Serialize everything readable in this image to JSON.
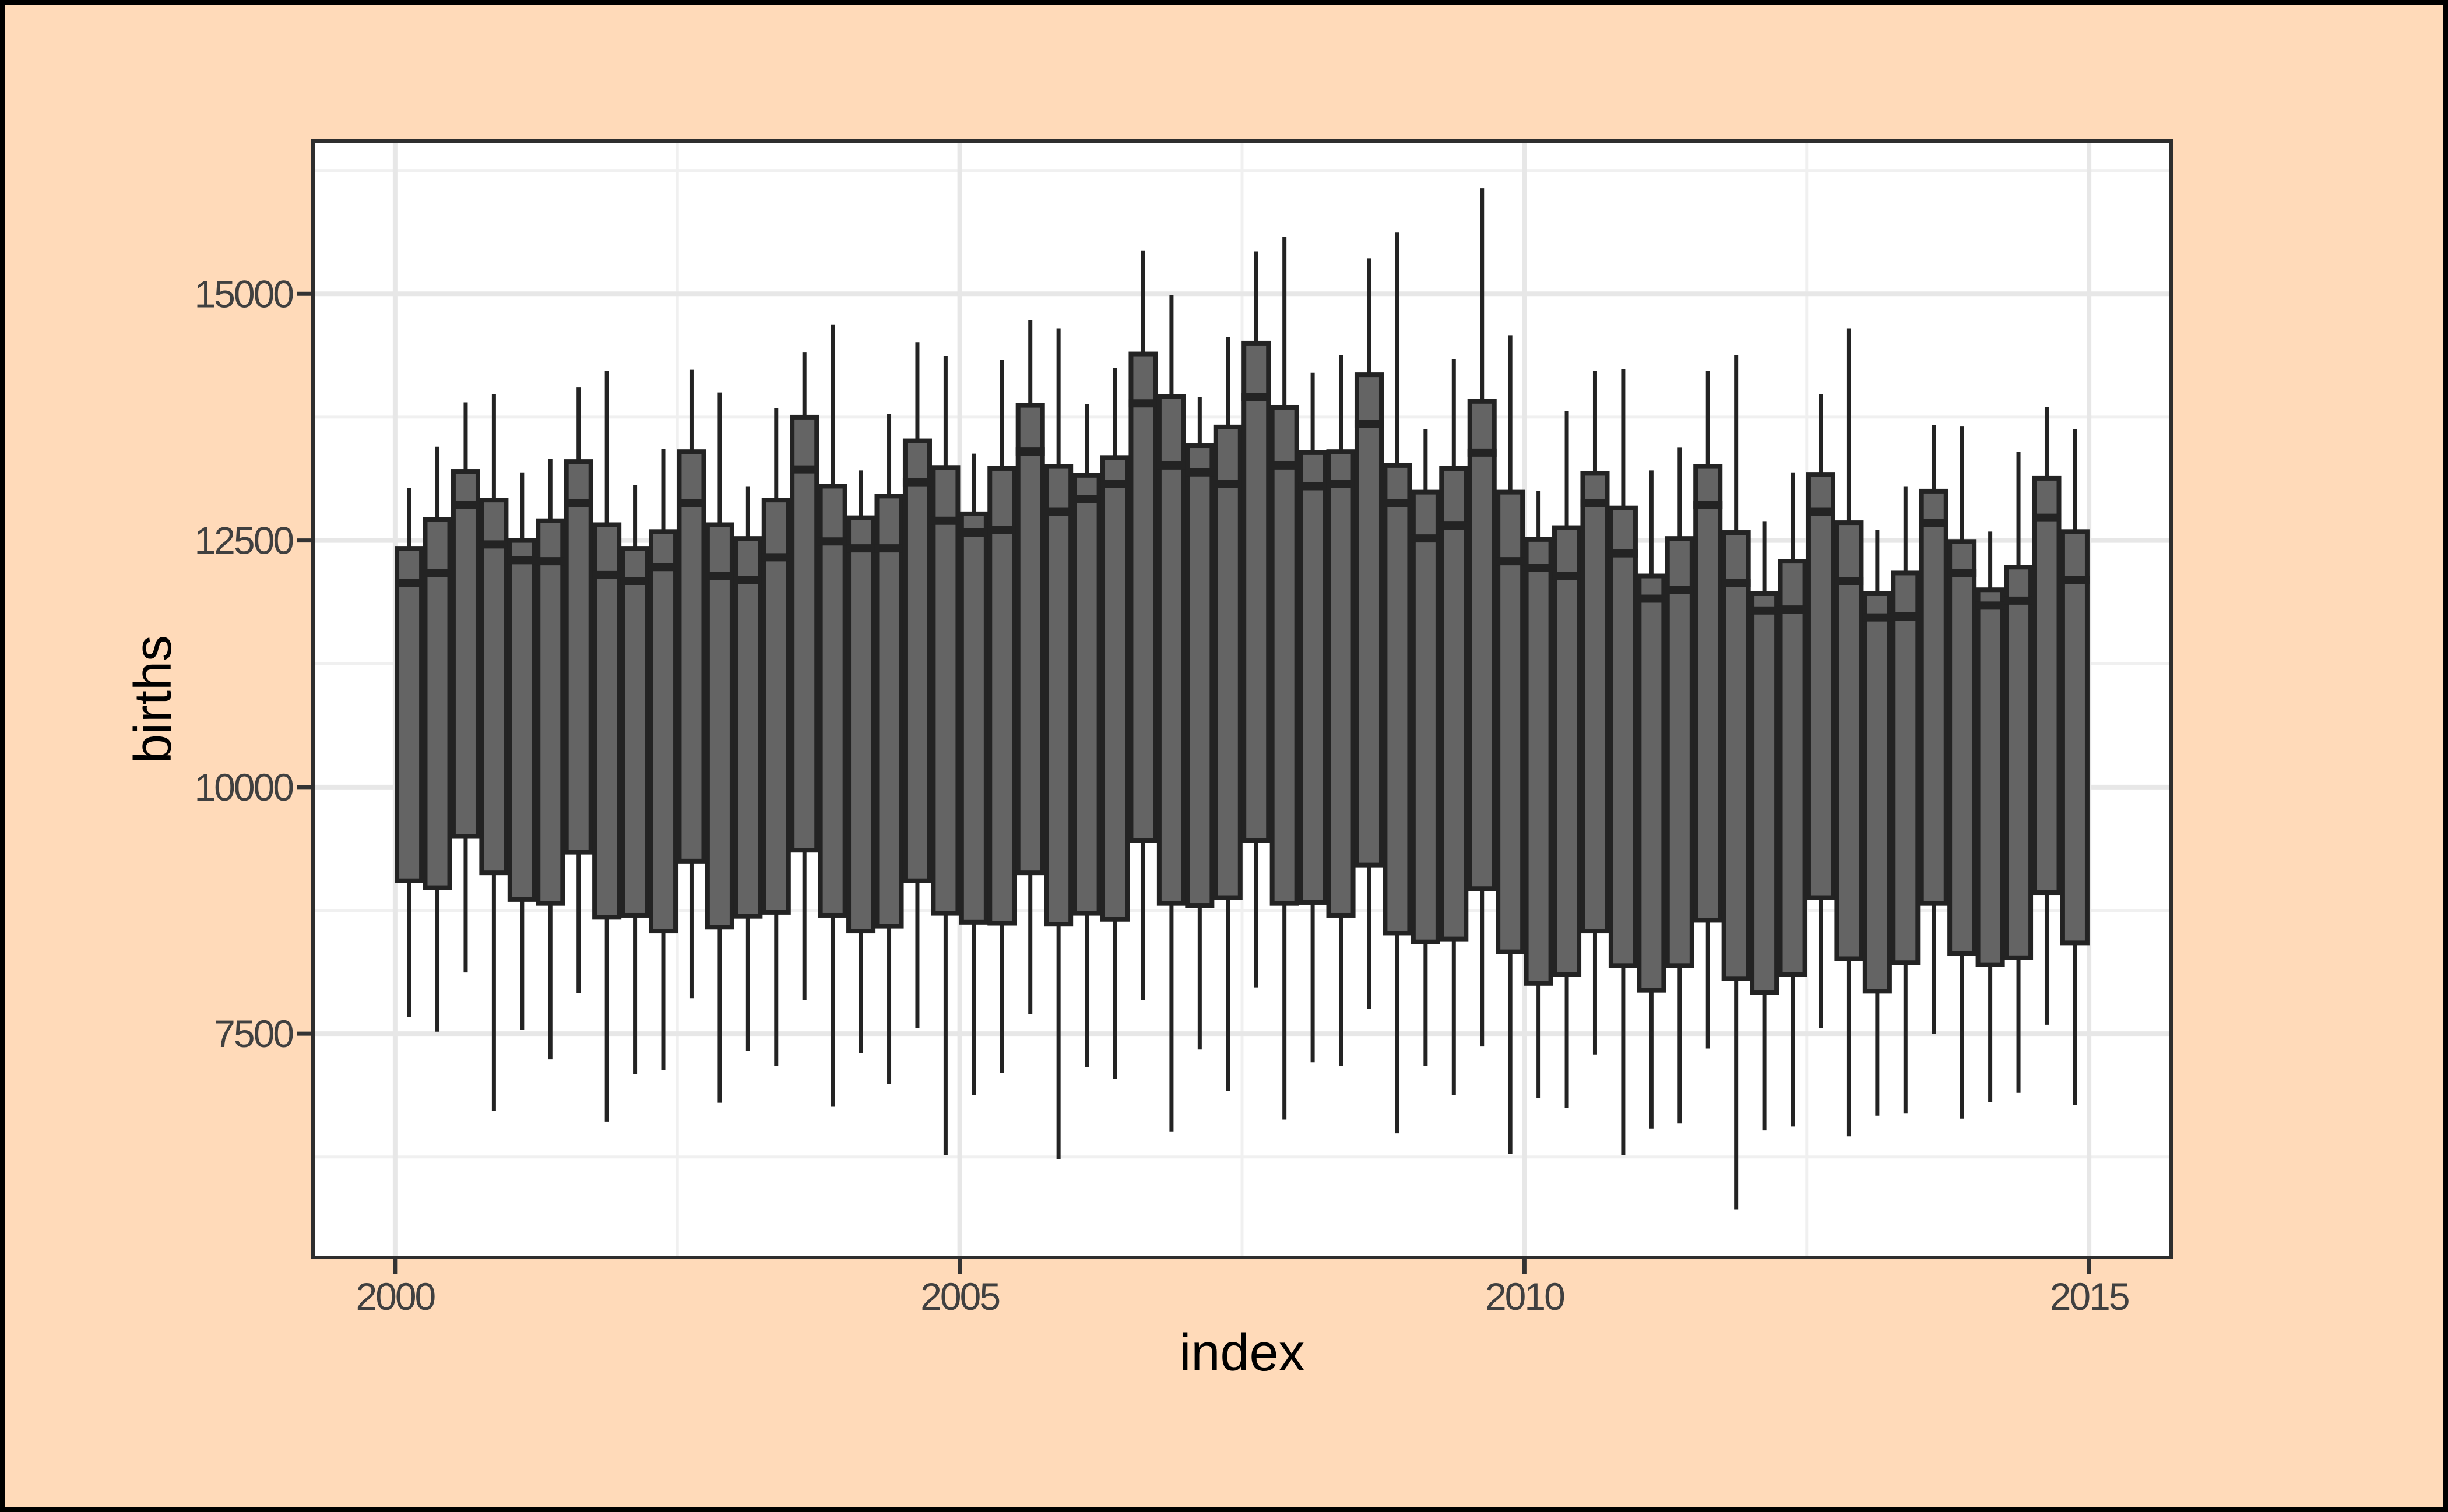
{
  "figure": {
    "kind": "ggplot-style statistical graphic",
    "background_color": "#FFDAB9",
    "outer_border_color": "#000000",
    "panel_background": "#FFFFFF",
    "panel_border_color": "#2E2E2E",
    "grid_major_color": "#E7E7E7",
    "grid_minor_color": "#F0F0F0",
    "box_fill": "#646464",
    "box_stroke": "#232323",
    "tick_color": "#333333",
    "tick_label_color": "#404040",
    "axis_title_color": "#000000"
  },
  "chart_data": {
    "type": "boxplot",
    "title": "",
    "xlabel": "index",
    "ylabel": "births",
    "x_tick_labels": [
      "2000",
      "2005",
      "2010",
      "2015"
    ],
    "x_tick_values": [
      2000,
      2005,
      2010,
      2015
    ],
    "y_tick_labels": [
      "7500",
      "10000",
      "12500",
      "15000"
    ],
    "y_tick_values": [
      7500,
      10000,
      12500,
      15000
    ],
    "x_minor_values": [
      2002.5,
      2007.5,
      2012.5
    ],
    "y_minor_values": [
      6250,
      8750,
      11250,
      13750,
      16250
    ],
    "xlim": [
      1999.273,
      2015.727
    ],
    "ylim": [
      5233,
      16549
    ],
    "grid": true,
    "legend": false,
    "box_width_x": 0.217,
    "boxes": [
      {
        "label": "2000 Q1",
        "x": 2000.125,
        "min": 7670,
        "q1": 9050,
        "median": 12070,
        "q3": 12420,
        "max": 13030
      },
      {
        "label": "2000 Q2",
        "x": 2000.375,
        "min": 7520,
        "q1": 8980,
        "median": 12170,
        "q3": 12710,
        "max": 13450
      },
      {
        "label": "2000 Q3",
        "x": 2000.625,
        "min": 8120,
        "q1": 9500,
        "median": 12860,
        "q3": 13200,
        "max": 13900
      },
      {
        "label": "2000 Q4",
        "x": 2000.875,
        "min": 6720,
        "q1": 9130,
        "median": 12460,
        "q3": 12910,
        "max": 13980
      },
      {
        "label": "2001 Q1",
        "x": 2001.125,
        "min": 7540,
        "q1": 8860,
        "median": 12300,
        "q3": 12500,
        "max": 13190
      },
      {
        "label": "2001 Q2",
        "x": 2001.375,
        "min": 7240,
        "q1": 8820,
        "median": 12290,
        "q3": 12700,
        "max": 13330
      },
      {
        "label": "2001 Q3",
        "x": 2001.625,
        "min": 7910,
        "q1": 9340,
        "median": 12880,
        "q3": 13300,
        "max": 14050
      },
      {
        "label": "2001 Q4",
        "x": 2001.875,
        "min": 6610,
        "q1": 8680,
        "median": 12150,
        "q3": 12660,
        "max": 14220
      },
      {
        "label": "2002 Q1",
        "x": 2002.125,
        "min": 7090,
        "q1": 8700,
        "median": 12090,
        "q3": 12420,
        "max": 13060
      },
      {
        "label": "2002 Q2",
        "x": 2002.375,
        "min": 7130,
        "q1": 8540,
        "median": 12230,
        "q3": 12590,
        "max": 13430
      },
      {
        "label": "2002 Q3",
        "x": 2002.625,
        "min": 7860,
        "q1": 9250,
        "median": 12880,
        "q3": 13400,
        "max": 14230
      },
      {
        "label": "2002 Q4",
        "x": 2002.875,
        "min": 6800,
        "q1": 8580,
        "median": 12140,
        "q3": 12660,
        "max": 14000
      },
      {
        "label": "2003 Q1",
        "x": 2003.125,
        "min": 7330,
        "q1": 8690,
        "median": 12100,
        "q3": 12520,
        "max": 13050
      },
      {
        "label": "2003 Q2",
        "x": 2003.375,
        "min": 7170,
        "q1": 8730,
        "median": 12330,
        "q3": 12910,
        "max": 13840
      },
      {
        "label": "2003 Q3",
        "x": 2003.625,
        "min": 7840,
        "q1": 9360,
        "median": 13220,
        "q3": 13750,
        "max": 14410
      },
      {
        "label": "2003 Q4",
        "x": 2003.875,
        "min": 6760,
        "q1": 8700,
        "median": 12490,
        "q3": 13050,
        "max": 14690
      },
      {
        "label": "2004 Q1",
        "x": 2004.125,
        "min": 7300,
        "q1": 8540,
        "median": 12420,
        "q3": 12730,
        "max": 13210
      },
      {
        "label": "2004 Q2",
        "x": 2004.375,
        "min": 6990,
        "q1": 8590,
        "median": 12420,
        "q3": 12950,
        "max": 13780
      },
      {
        "label": "2004 Q3",
        "x": 2004.625,
        "min": 7560,
        "q1": 9050,
        "median": 13090,
        "q3": 13510,
        "max": 14510
      },
      {
        "label": "2004 Q4",
        "x": 2004.875,
        "min": 6270,
        "q1": 8720,
        "median": 12700,
        "q3": 13240,
        "max": 14370
      },
      {
        "label": "2005 Q1",
        "x": 2005.125,
        "min": 6880,
        "q1": 8630,
        "median": 12580,
        "q3": 12770,
        "max": 13380
      },
      {
        "label": "2005 Q2",
        "x": 2005.375,
        "min": 7100,
        "q1": 8620,
        "median": 12610,
        "q3": 13230,
        "max": 14330
      },
      {
        "label": "2005 Q3",
        "x": 2005.625,
        "min": 7700,
        "q1": 9130,
        "median": 13400,
        "q3": 13870,
        "max": 14730
      },
      {
        "label": "2005 Q4",
        "x": 2005.875,
        "min": 6230,
        "q1": 8610,
        "median": 12790,
        "q3": 13250,
        "max": 14650
      },
      {
        "label": "2006 Q1",
        "x": 2006.125,
        "min": 7160,
        "q1": 8720,
        "median": 12920,
        "q3": 13160,
        "max": 13880
      },
      {
        "label": "2006 Q2",
        "x": 2006.375,
        "min": 7040,
        "q1": 8660,
        "median": 13070,
        "q3": 13340,
        "max": 14250
      },
      {
        "label": "2006 Q3",
        "x": 2006.625,
        "min": 7840,
        "q1": 9460,
        "median": 13890,
        "q3": 14390,
        "max": 15440
      },
      {
        "label": "2006 Q4",
        "x": 2006.875,
        "min": 6510,
        "q1": 8820,
        "median": 13260,
        "q3": 13960,
        "max": 14990
      },
      {
        "label": "2007 Q1",
        "x": 2007.125,
        "min": 7340,
        "q1": 8800,
        "median": 13190,
        "q3": 13460,
        "max": 13950
      },
      {
        "label": "2007 Q2",
        "x": 2007.375,
        "min": 6920,
        "q1": 8880,
        "median": 13070,
        "q3": 13650,
        "max": 14560
      },
      {
        "label": "2007 Q3",
        "x": 2007.625,
        "min": 7970,
        "q1": 9460,
        "median": 13950,
        "q3": 14500,
        "max": 15430
      },
      {
        "label": "2007 Q4",
        "x": 2007.875,
        "min": 6630,
        "q1": 8820,
        "median": 13260,
        "q3": 13850,
        "max": 15580
      },
      {
        "label": "2008 Q1",
        "x": 2008.125,
        "min": 7210,
        "q1": 8830,
        "median": 13050,
        "q3": 13390,
        "max": 14200
      },
      {
        "label": "2008 Q2",
        "x": 2008.375,
        "min": 7170,
        "q1": 8700,
        "median": 13070,
        "q3": 13400,
        "max": 14380
      },
      {
        "label": "2008 Q3",
        "x": 2008.625,
        "min": 7750,
        "q1": 9210,
        "median": 13680,
        "q3": 14180,
        "max": 15360
      },
      {
        "label": "2008 Q4",
        "x": 2008.875,
        "min": 6490,
        "q1": 8520,
        "median": 12880,
        "q3": 13260,
        "max": 15620
      },
      {
        "label": "2009 Q1",
        "x": 2009.125,
        "min": 7170,
        "q1": 8430,
        "median": 12520,
        "q3": 12990,
        "max": 13630
      },
      {
        "label": "2009 Q2",
        "x": 2009.375,
        "min": 6880,
        "q1": 8460,
        "median": 12650,
        "q3": 13230,
        "max": 14340
      },
      {
        "label": "2009 Q3",
        "x": 2009.625,
        "min": 7370,
        "q1": 8970,
        "median": 13390,
        "q3": 13910,
        "max": 16070
      },
      {
        "label": "2009 Q4",
        "x": 2009.875,
        "min": 6280,
        "q1": 8330,
        "median": 12290,
        "q3": 12990,
        "max": 14580
      },
      {
        "label": "2010 Q1",
        "x": 2010.125,
        "min": 6850,
        "q1": 8010,
        "median": 12220,
        "q3": 12510,
        "max": 13000
      },
      {
        "label": "2010 Q2",
        "x": 2010.375,
        "min": 6750,
        "q1": 8100,
        "median": 12140,
        "q3": 12630,
        "max": 13810
      },
      {
        "label": "2010 Q3",
        "x": 2010.625,
        "min": 7290,
        "q1": 8540,
        "median": 12880,
        "q3": 13180,
        "max": 14220
      },
      {
        "label": "2010 Q4",
        "x": 2010.875,
        "min": 6270,
        "q1": 8190,
        "median": 12370,
        "q3": 12830,
        "max": 14240
      },
      {
        "label": "2011 Q1",
        "x": 2011.125,
        "min": 6540,
        "q1": 7940,
        "median": 11910,
        "q3": 12140,
        "max": 13210
      },
      {
        "label": "2011 Q2",
        "x": 2011.375,
        "min": 6590,
        "q1": 8190,
        "median": 12000,
        "q3": 12520,
        "max": 13440
      },
      {
        "label": "2011 Q3",
        "x": 2011.625,
        "min": 7350,
        "q1": 8650,
        "median": 12860,
        "q3": 13250,
        "max": 14220
      },
      {
        "label": "2011 Q4",
        "x": 2011.875,
        "min": 5720,
        "q1": 8060,
        "median": 12070,
        "q3": 12580,
        "max": 14380
      },
      {
        "label": "2012 Q1",
        "x": 2012.125,
        "min": 6520,
        "q1": 7920,
        "median": 11790,
        "q3": 11960,
        "max": 12690
      },
      {
        "label": "2012 Q2",
        "x": 2012.375,
        "min": 6560,
        "q1": 8100,
        "median": 11800,
        "q3": 12290,
        "max": 13190
      },
      {
        "label": "2012 Q3",
        "x": 2012.625,
        "min": 7560,
        "q1": 8880,
        "median": 12790,
        "q3": 13170,
        "max": 13980
      },
      {
        "label": "2012 Q4",
        "x": 2012.875,
        "min": 6460,
        "q1": 8260,
        "median": 12090,
        "q3": 12680,
        "max": 14650
      },
      {
        "label": "2013 Q1",
        "x": 2013.125,
        "min": 6670,
        "q1": 7930,
        "median": 11720,
        "q3": 11960,
        "max": 12610
      },
      {
        "label": "2013 Q2",
        "x": 2013.375,
        "min": 6690,
        "q1": 8220,
        "median": 11730,
        "q3": 12170,
        "max": 13050
      },
      {
        "label": "2013 Q3",
        "x": 2013.625,
        "min": 7500,
        "q1": 8820,
        "median": 12680,
        "q3": 13000,
        "max": 13670
      },
      {
        "label": "2013 Q4",
        "x": 2013.875,
        "min": 6640,
        "q1": 8310,
        "median": 12170,
        "q3": 12490,
        "max": 13660
      },
      {
        "label": "2014 Q1",
        "x": 2014.125,
        "min": 6810,
        "q1": 8200,
        "median": 11840,
        "q3": 12000,
        "max": 12590
      },
      {
        "label": "2014 Q2",
        "x": 2014.375,
        "min": 6900,
        "q1": 8270,
        "median": 11890,
        "q3": 12230,
        "max": 13400
      },
      {
        "label": "2014 Q3",
        "x": 2014.625,
        "min": 7590,
        "q1": 8930,
        "median": 12730,
        "q3": 13130,
        "max": 13850
      },
      {
        "label": "2014 Q4",
        "x": 2014.875,
        "min": 6780,
        "q1": 8420,
        "median": 12100,
        "q3": 12590,
        "max": 13630
      }
    ]
  }
}
